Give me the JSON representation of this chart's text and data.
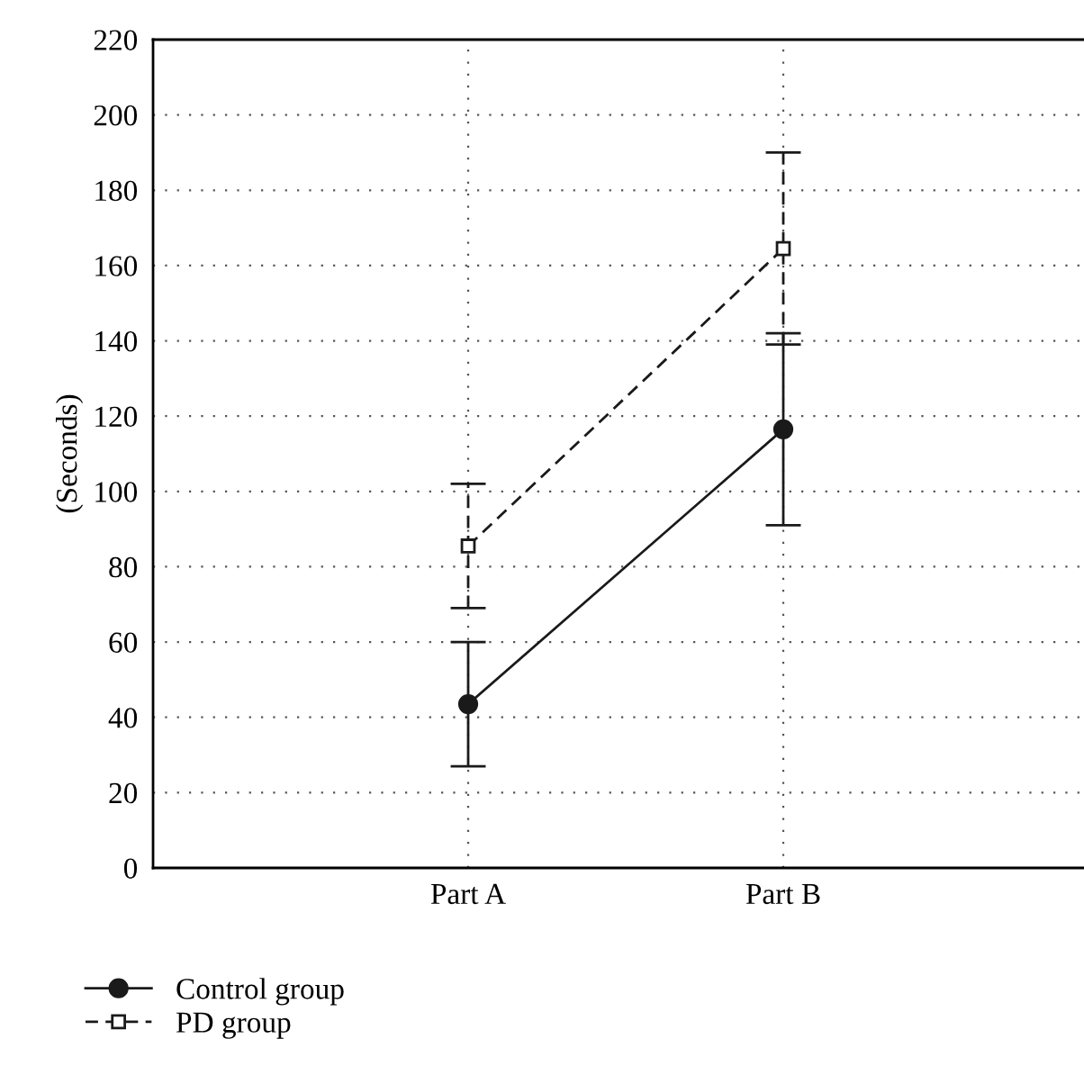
{
  "chart_data": {
    "type": "line",
    "ylabel": "(Seconds)",
    "categories": [
      "Part A",
      "Part B"
    ],
    "series": [
      {
        "name": "Control group",
        "color": "#1a1a1a",
        "values": [
          43.5,
          116.5
        ],
        "errors": [
          16.5,
          25.5
        ],
        "marker": "circle",
        "line_style": "solid"
      },
      {
        "name": "PD group",
        "color": "#1a1a1a",
        "values": [
          85.5,
          164.5
        ],
        "errors": [
          16.5,
          25.5
        ],
        "marker": "square",
        "line_style": "dashed"
      }
    ],
    "ylim": [
      0,
      220
    ],
    "yticks": [
      0,
      20,
      40,
      60,
      80,
      100,
      120,
      140,
      160,
      180,
      200,
      220
    ],
    "grid": true,
    "legend": "bottom"
  }
}
